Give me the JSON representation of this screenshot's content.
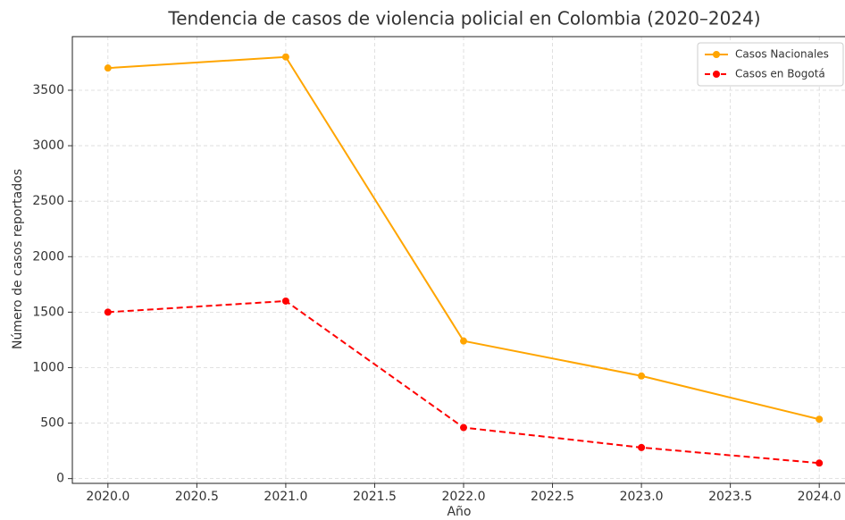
{
  "chart_data": {
    "type": "line",
    "title": "Tendencia de casos de violencia policial en Colombia (2020–2024)",
    "xlabel": "Año",
    "ylabel": "Número de casos reportados",
    "x": [
      2020,
      2021,
      2022,
      2023,
      2024
    ],
    "series": [
      {
        "name": "Casos Nacionales",
        "color": "#ffa500",
        "linestyle": "solid",
        "values": [
          3700,
          3800,
          1240,
          925,
          535
        ]
      },
      {
        "name": "Casos en Bogotá",
        "color": "#ff0000",
        "linestyle": "dashed",
        "values": [
          1500,
          1600,
          460,
          280,
          140
        ]
      }
    ],
    "xlim": [
      2019.8,
      2024.2
    ],
    "xticks": [
      {
        "value": 2020,
        "label": "2020.0"
      },
      2020.5,
      {
        "value": 2021,
        "label": "2021.0"
      },
      2021.5,
      {
        "value": 2022,
        "label": "2022.0"
      },
      2022.5,
      {
        "value": 2023,
        "label": "2023.0"
      },
      2023.5,
      {
        "value": 2024,
        "label": "2024.0"
      }
    ],
    "ylim": [
      -43,
      3983
    ],
    "yticks": [
      0,
      500,
      1000,
      1500,
      2000,
      2500,
      3000,
      3500
    ],
    "grid": true,
    "legend": "upper right"
  }
}
